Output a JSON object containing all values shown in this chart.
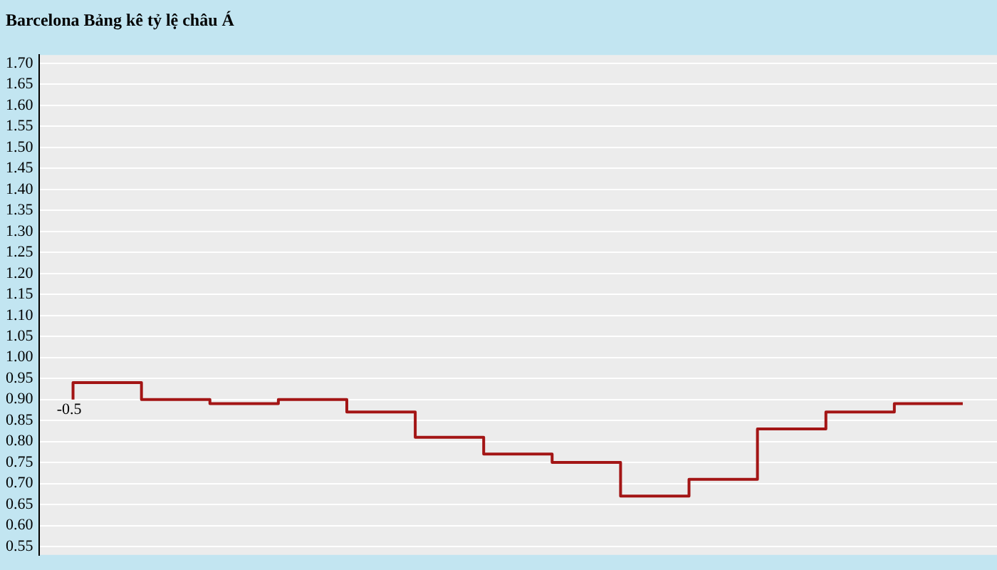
{
  "chart_data": {
    "type": "step",
    "title": "Barcelona Bảng kê tỷ lệ châu Á",
    "categories": [
      null,
      null,
      null,
      null,
      null,
      null,
      null,
      null,
      null,
      null,
      null,
      null,
      null,
      null
    ],
    "series": [
      {
        "color": "#a31515",
        "values": [
          0.9,
          0.94,
          0.9,
          0.89,
          0.9,
          0.87,
          0.81,
          0.77,
          0.75,
          0.67,
          0.71,
          0.83,
          0.87,
          0.89
        ]
      }
    ],
    "ylim": [
      0.53,
      1.72
    ],
    "yticks": [
      {
        "value": 0.55,
        "label": "0.55"
      },
      {
        "value": 0.6,
        "label": "0.60"
      },
      {
        "value": 0.65,
        "label": "0.65"
      },
      {
        "value": 0.7,
        "label": "0.70"
      },
      {
        "value": 0.75,
        "label": "0.75"
      },
      {
        "value": 0.8,
        "label": "0.80"
      },
      {
        "value": 0.85,
        "label": "0.85"
      },
      {
        "value": 0.9,
        "label": "0.90"
      },
      {
        "value": 0.95,
        "label": "0.95"
      },
      {
        "value": 1.0,
        "label": "1.00"
      },
      {
        "value": 1.05,
        "label": "1.05"
      },
      {
        "value": 1.1,
        "label": "1.10"
      },
      {
        "value": 1.15,
        "label": "1.15"
      },
      {
        "value": 1.2,
        "label": "1.20"
      },
      {
        "value": 1.25,
        "label": "1.25"
      },
      {
        "value": 1.3,
        "label": "1.30"
      },
      {
        "value": 1.35,
        "label": "1.35"
      },
      {
        "value": 1.4,
        "label": "1.40"
      },
      {
        "value": 1.45,
        "label": "1.45"
      },
      {
        "value": 1.5,
        "label": "1.50"
      },
      {
        "value": 1.55,
        "label": "1.55"
      },
      {
        "value": 1.6,
        "label": "1.60"
      },
      {
        "value": 1.65,
        "label": "1.65"
      },
      {
        "value": 1.7,
        "label": "1.70"
      }
    ],
    "grid": "y",
    "tick_labels": "y",
    "legend": false,
    "annotations": [
      {
        "text": "-0.5",
        "y": 0.9
      }
    ]
  }
}
